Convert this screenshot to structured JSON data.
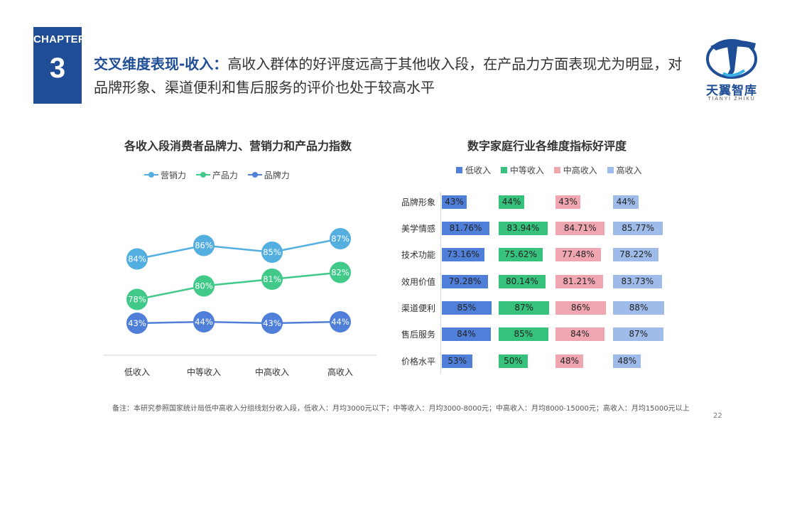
{
  "chapter": {
    "label": "CHAPTER",
    "number": "3"
  },
  "headline": {
    "lead": "交叉维度表现-收入：",
    "text": "高收入群体的好评度远高于其他收入段，在产品力方面表现尤为明显，对品牌形象、渠道便利和售后服务的评价也处于较高水平"
  },
  "logo": {
    "name": "天翼智库",
    "sub": "TIANYI ZHIKU"
  },
  "footnote": "备注：本研究参照国家统计局低中高收入分组线划分收入段，低收入：月均3000元以下；中等收入：月均3000-8000元；中高收入：月均8000-15000元；高收入：月均15000元以上",
  "page_number": "22",
  "colors": {
    "brand": "#1f4e97",
    "low": "#4f7fd9",
    "mid": "#36c17c",
    "midhigh": "#f0a6b1",
    "high": "#9ebbea"
  },
  "chart_data": [
    {
      "type": "line",
      "title": "各收入段消费者品牌力、营销力和产品力指数",
      "categories": [
        "低收入",
        "中等收入",
        "中高收入",
        "高收入"
      ],
      "series": [
        {
          "name": "营销力",
          "color": "#53afe0",
          "values": [
            84,
            86,
            85,
            87
          ],
          "labels": [
            "84%",
            "86%",
            "85%",
            "87%"
          ]
        },
        {
          "name": "产品力",
          "color": "#41c98a",
          "values": [
            78,
            80,
            81,
            82
          ],
          "labels": [
            "78%",
            "80%",
            "81%",
            "82%"
          ]
        },
        {
          "name": "品牌力",
          "color": "#4f7fd9",
          "values": [
            43,
            44,
            43,
            44
          ],
          "labels": [
            "43%",
            "44%",
            "43%",
            "44%"
          ]
        }
      ]
    },
    {
      "type": "bar",
      "title": "数字家庭行业各维度指标好评度",
      "categories": [
        "品牌形象",
        "美学情感",
        "技术功能",
        "效用价值",
        "渠道便利",
        "售后服务",
        "价格水平"
      ],
      "series": [
        {
          "name": "低收入",
          "color": "#4f7fd9",
          "values": [
            43,
            81.76,
            73.16,
            79.28,
            85,
            84,
            53
          ],
          "labels": [
            "43%",
            "81.76%",
            "73.16%",
            "79.28%",
            "85%",
            "84%",
            "53%"
          ]
        },
        {
          "name": "中等收入",
          "color": "#36c17c",
          "values": [
            44,
            83.94,
            75.62,
            80.14,
            87,
            85,
            50
          ],
          "labels": [
            "44%",
            "83.94%",
            "75.62%",
            "80.14%",
            "87%",
            "85%",
            "50%"
          ]
        },
        {
          "name": "中高收入",
          "color": "#f0a6b1",
          "values": [
            43,
            84.71,
            77.48,
            81.21,
            86,
            84,
            48
          ],
          "labels": [
            "43%",
            "84.71%",
            "77.48%",
            "81.21%",
            "86%",
            "84%",
            "48%"
          ]
        },
        {
          "name": "高收入",
          "color": "#9ebbea",
          "values": [
            44,
            85.77,
            78.22,
            83.73,
            88,
            87,
            48
          ],
          "labels": [
            "44%",
            "85.77%",
            "78.22%",
            "83.73%",
            "88%",
            "87%",
            "48%"
          ]
        }
      ]
    }
  ]
}
